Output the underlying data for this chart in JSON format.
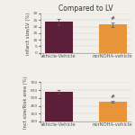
{
  "title": "Compared to LV",
  "top_chart": {
    "ylabel": "infarct size/LV (%)",
    "categories": [
      "Vehicle-Vehicle",
      "norNOHA-vehicle"
    ],
    "values": [
      23.5,
      21.5
    ],
    "errors": [
      2.5,
      1.5
    ],
    "bar_colors": [
      "#5b1f3a",
      "#e8943a"
    ],
    "ylim": [
      0,
      30
    ],
    "yticks": [
      0,
      5,
      10,
      15,
      20,
      25,
      30
    ],
    "significance": [
      false,
      true
    ]
  },
  "bottom_chart": {
    "ylabel": "Inct size/Risk area (%)",
    "categories": [
      "Vehicle-Vehicle",
      "norNOHA-vehicle"
    ],
    "values": [
      580,
      450
    ],
    "errors": [
      20,
      15
    ],
    "bar_colors": [
      "#5b1f3a",
      "#e8943a"
    ],
    "ylim": [
      200,
      700
    ],
    "yticks": [
      200,
      300,
      400,
      500,
      600,
      700
    ],
    "significance": [
      false,
      true
    ]
  },
  "background_color": "#f0efea",
  "title_fontsize": 5.5,
  "label_fontsize": 3.8,
  "tick_fontsize": 3.2,
  "xticklabel_fontsize": 3.8
}
